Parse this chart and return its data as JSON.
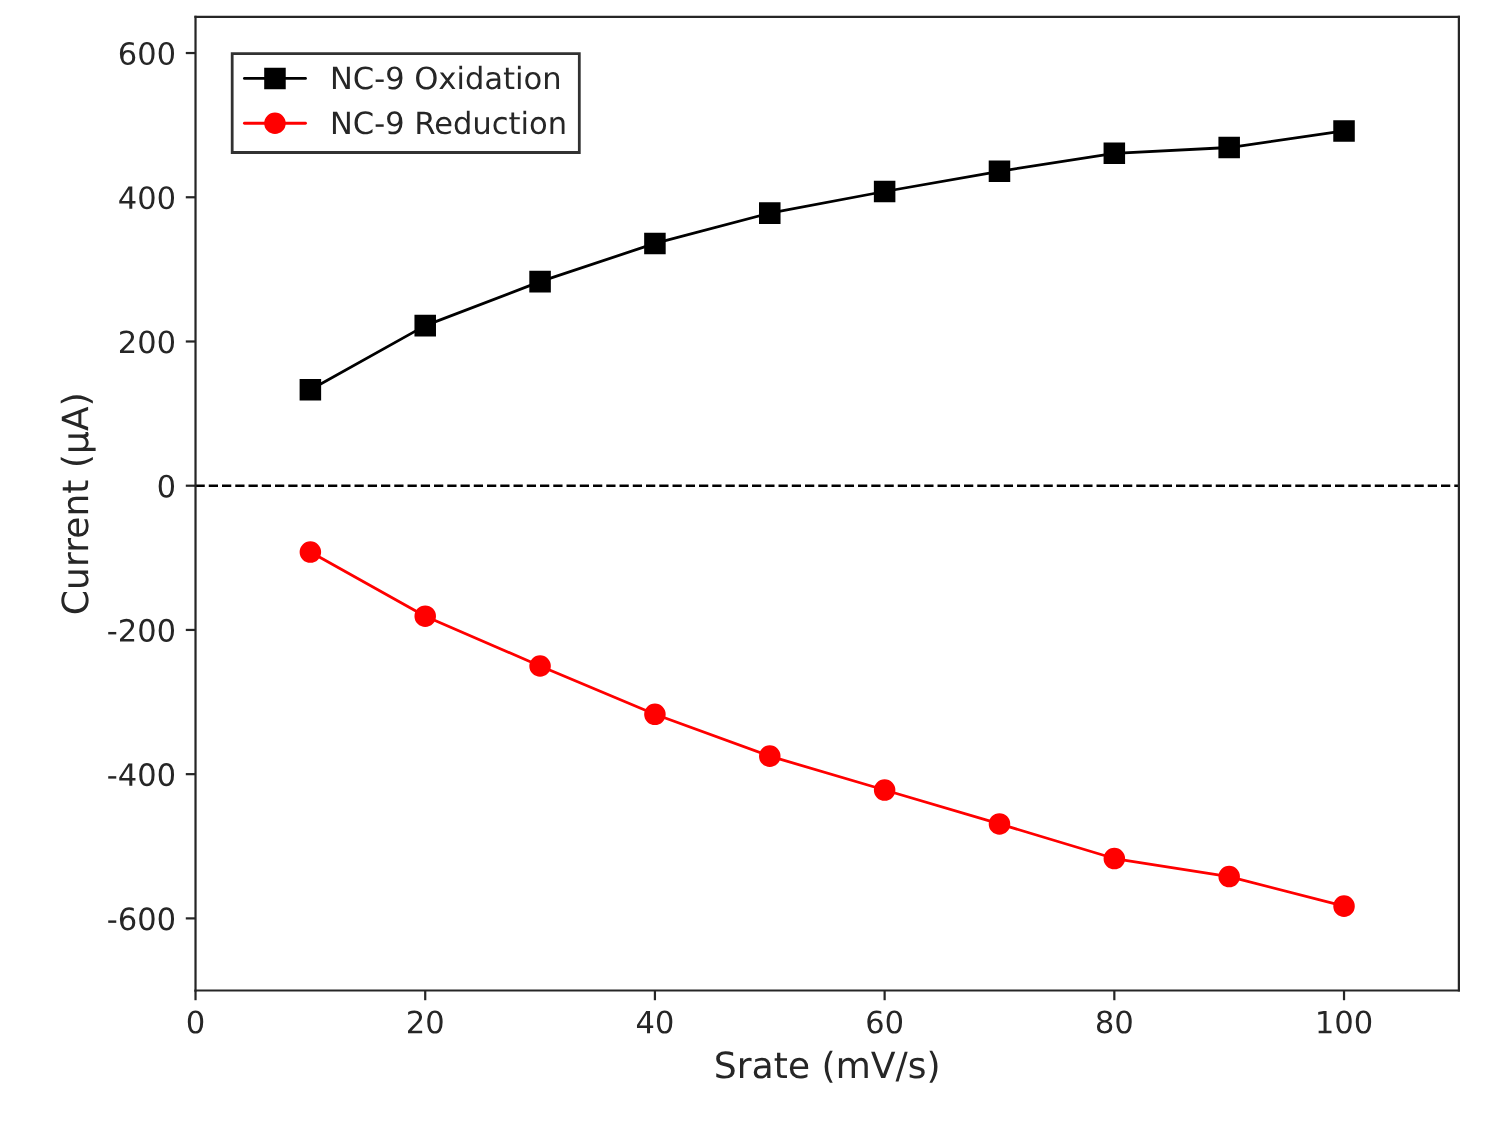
{
  "chart_data": {
    "type": "line",
    "xlabel": "Srate (mV/s)",
    "ylabel": "Current (μA)",
    "x": [
      10,
      20,
      30,
      40,
      50,
      60,
      70,
      80,
      90,
      100
    ],
    "series": [
      {
        "name": "NC-9 Oxidation",
        "color": "#000000",
        "marker": "square",
        "values": [
          133,
          222,
          283,
          336,
          378,
          408,
          436,
          461,
          469,
          492
        ]
      },
      {
        "name": "NC-9 Reduction",
        "color": "#ff0000",
        "marker": "circle",
        "values": [
          -92,
          -181,
          -250,
          -317,
          -375,
          -422,
          -469,
          -517,
          -542,
          -583
        ]
      }
    ],
    "xlim": [
      0,
      110
    ],
    "xticks": [
      0,
      20,
      40,
      60,
      80,
      100
    ],
    "ylim": [
      -700,
      650
    ],
    "yticks": [
      -600,
      -400,
      -200,
      0,
      200,
      400,
      600
    ],
    "ref_lines": [
      {
        "axis": "y",
        "value": 0,
        "color": "#000000",
        "line_style": "dashed"
      }
    ],
    "grid": false,
    "legend": "top left",
    "line_style": "solid"
  }
}
